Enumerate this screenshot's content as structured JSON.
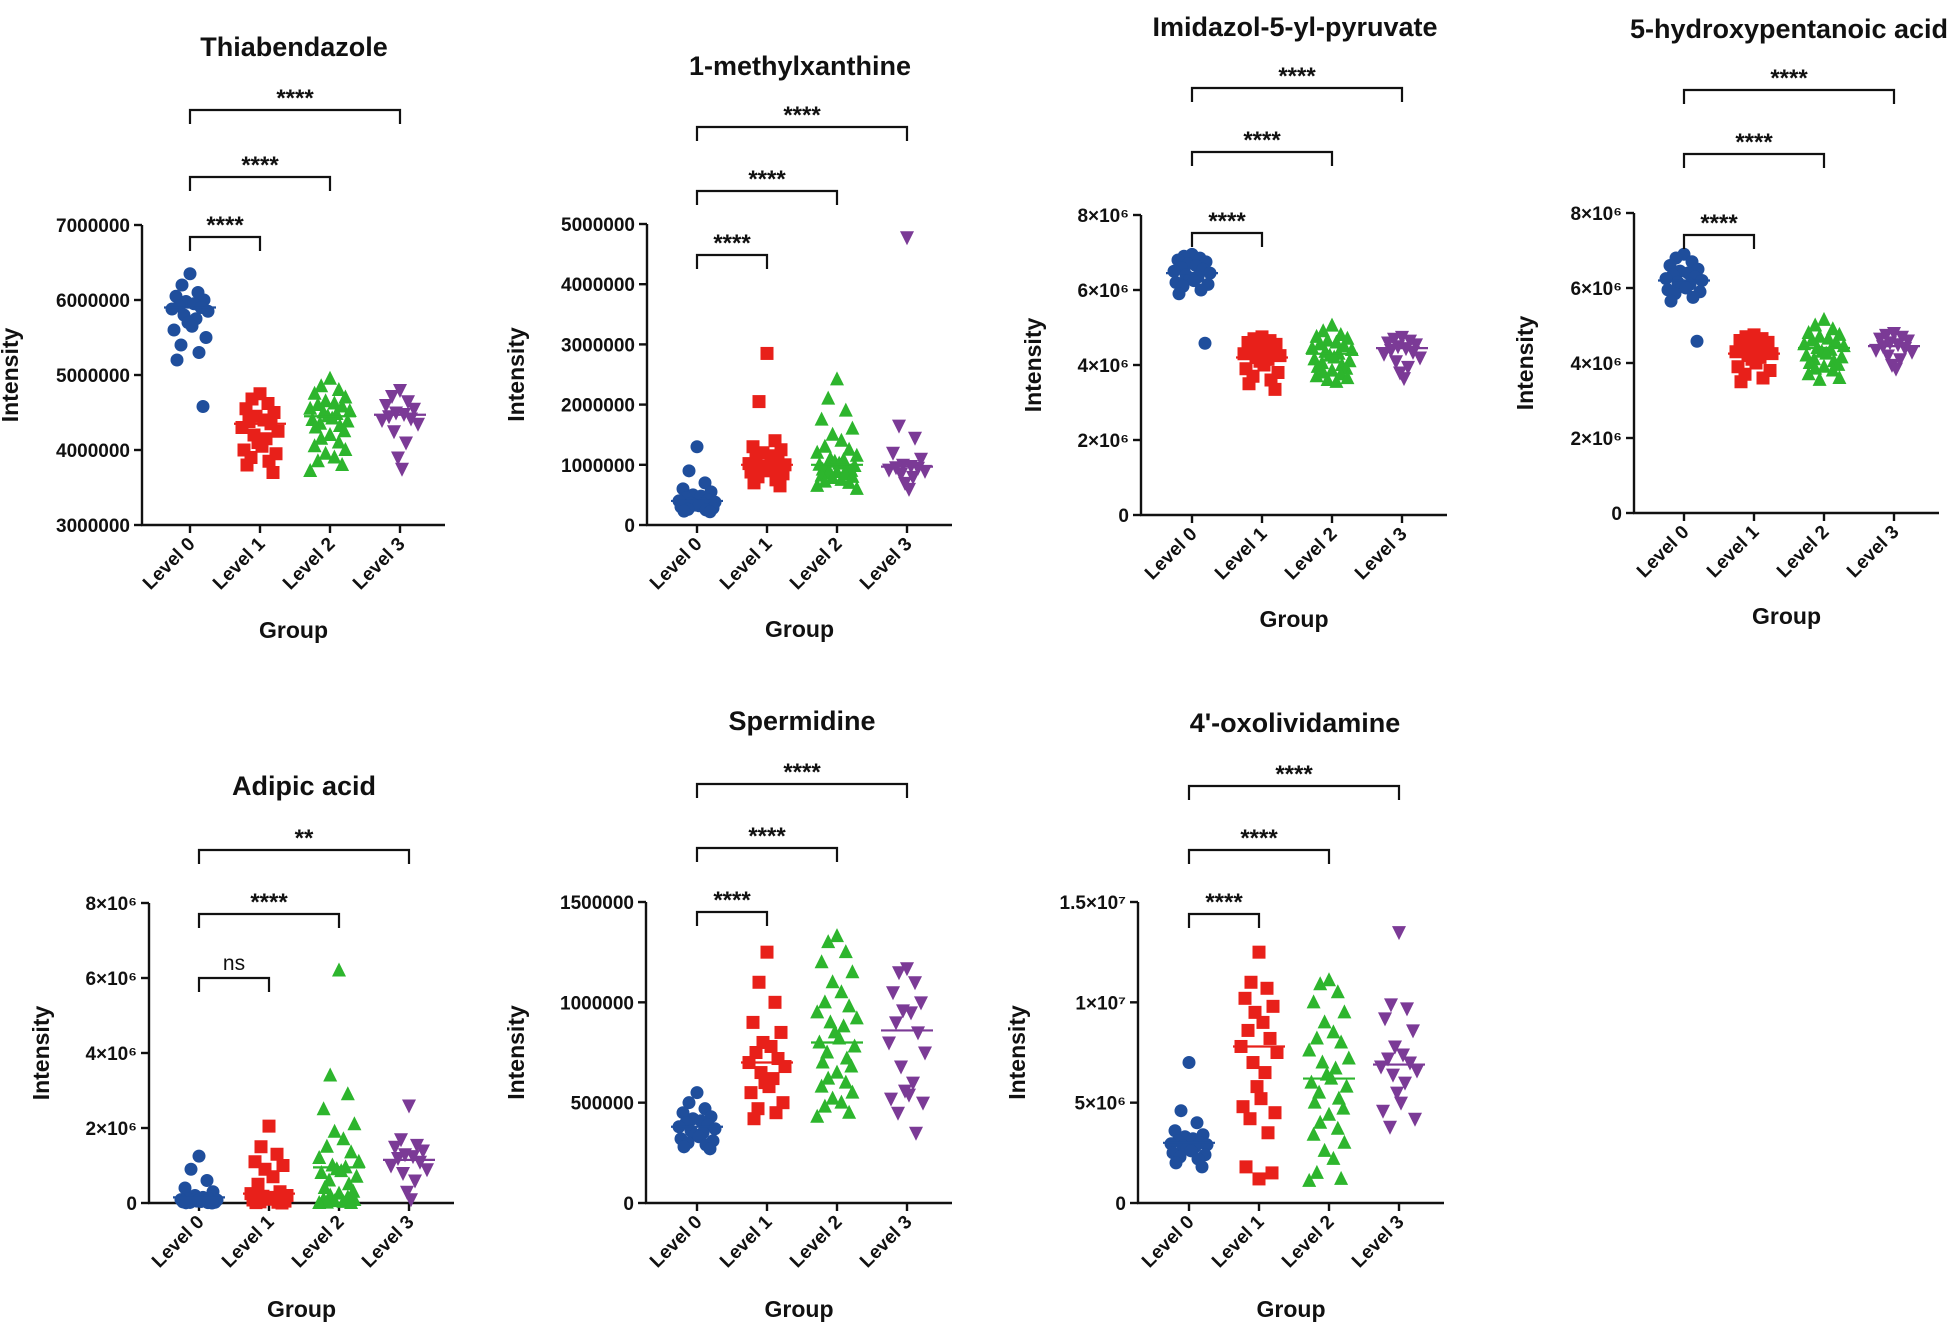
{
  "figure": {
    "x_axis_label": "Group",
    "y_axis_label": "Intensity"
  },
  "group_labels": [
    "Level 0",
    "Level 1",
    "Level 2",
    "Level 3"
  ],
  "colors": {
    "Level 0": "#1f4e9c",
    "Level 1": "#e8201a",
    "Level 2": "#2db52d",
    "Level 3": "#7b3a96"
  },
  "markers": {
    "Level 0": "circle",
    "Level 1": "square",
    "Level 2": "triangle-up",
    "Level 3": "triangle-down"
  },
  "chart_data": [
    {
      "type": "scatter",
      "title": "Thiabendazole",
      "xlabel": "Group",
      "ylabel": "Intensity",
      "categories": [
        "Level 0",
        "Level 1",
        "Level 2",
        "Level 3"
      ],
      "ylim": [
        3000000,
        7000000
      ],
      "yticks": [
        3000000,
        4000000,
        5000000,
        6000000,
        7000000
      ],
      "ytick_labels": [
        "3000000",
        "4000000",
        "5000000",
        "6000000",
        "7000000"
      ],
      "means": [
        5900000,
        4350000,
        4450000,
        4470000
      ],
      "points": [
        [
          6350000,
          6200000,
          6100000,
          6050000,
          6000000,
          5980000,
          5950000,
          5920000,
          5900000,
          5880000,
          5850000,
          5800000,
          5750000,
          5700000,
          5650000,
          5600000,
          5500000,
          5400000,
          5300000,
          5200000,
          4580000
        ],
        [
          4750000,
          4680000,
          4620000,
          4550000,
          4500000,
          4450000,
          4400000,
          4380000,
          4350000,
          4300000,
          4250000,
          4200000,
          4150000,
          4100000,
          4050000,
          4000000,
          3950000,
          3900000,
          3850000,
          3800000,
          3700000
        ],
        [
          4950000,
          4850000,
          4800000,
          4750000,
          4700000,
          4650000,
          4620000,
          4600000,
          4580000,
          4550000,
          4520000,
          4500000,
          4480000,
          4450000,
          4420000,
          4400000,
          4380000,
          4350000,
          4320000,
          4300000,
          4250000,
          4200000,
          4150000,
          4100000,
          4050000,
          4000000,
          3950000,
          3900000,
          3850000,
          3800000,
          3720000
        ],
        [
          4800000,
          4720000,
          4650000,
          4600000,
          4550000,
          4500000,
          4480000,
          4450000,
          4420000,
          4400000,
          4350000,
          4250000,
          4100000,
          3900000,
          3750000
        ]
      ],
      "comparisons": [
        {
          "from": "Level 0",
          "to": "Level 1",
          "label": "****"
        },
        {
          "from": "Level 0",
          "to": "Level 2",
          "label": "****"
        },
        {
          "from": "Level 0",
          "to": "Level 3",
          "label": "****"
        }
      ]
    },
    {
      "type": "scatter",
      "title": "1-methylxanthine",
      "xlabel": "Group",
      "ylabel": "Intensity",
      "categories": [
        "Level 0",
        "Level 1",
        "Level 2",
        "Level 3"
      ],
      "ylim": [
        0,
        5000000
      ],
      "yticks": [
        0,
        1000000,
        2000000,
        3000000,
        4000000,
        5000000
      ],
      "ytick_labels": [
        "0",
        "1000000",
        "2000000",
        "3000000",
        "4000000",
        "5000000"
      ],
      "means": [
        400000,
        1000000,
        1000000,
        970000
      ],
      "points": [
        [
          1300000,
          900000,
          700000,
          600000,
          550000,
          500000,
          480000,
          450000,
          420000,
          400000,
          380000,
          360000,
          350000,
          330000,
          320000,
          300000,
          280000,
          260000,
          250000,
          230000,
          220000
        ],
        [
          2850000,
          2050000,
          1400000,
          1300000,
          1250000,
          1200000,
          1150000,
          1100000,
          1050000,
          1020000,
          1000000,
          980000,
          950000,
          920000,
          900000,
          880000,
          850000,
          800000,
          750000,
          700000,
          650000
        ],
        [
          2420000,
          2100000,
          1900000,
          1750000,
          1600000,
          1500000,
          1400000,
          1300000,
          1250000,
          1200000,
          1150000,
          1100000,
          1080000,
          1050000,
          1020000,
          1000000,
          980000,
          960000,
          940000,
          920000,
          900000,
          880000,
          860000,
          840000,
          820000,
          800000,
          780000,
          750000,
          720000,
          700000,
          650000,
          600000
        ],
        [
          4780000,
          1650000,
          1450000,
          1200000,
          1100000,
          1000000,
          980000,
          960000,
          950000,
          920000,
          900000,
          850000,
          800000,
          700000,
          600000
        ]
      ],
      "comparisons": [
        {
          "from": "Level 0",
          "to": "Level 1",
          "label": "****"
        },
        {
          "from": "Level 0",
          "to": "Level 2",
          "label": "****"
        },
        {
          "from": "Level 0",
          "to": "Level 3",
          "label": "****"
        }
      ]
    },
    {
      "type": "scatter",
      "title": "Imidazol-5-yl-pyruvate",
      "xlabel": "Group",
      "ylabel": "Intensity",
      "categories": [
        "Level 0",
        "Level 1",
        "Level 2",
        "Level 3"
      ],
      "ylim": [
        0,
        8000000
      ],
      "yticks": [
        0,
        2000000,
        4000000,
        6000000,
        8000000
      ],
      "ytick_labels": [
        "0",
        "2×10⁶",
        "4×10⁶",
        "6×10⁶",
        "8×10⁶"
      ],
      "means": [
        6450000,
        4200000,
        4300000,
        4450000
      ],
      "points": [
        [
          6950000,
          6900000,
          6850000,
          6800000,
          6750000,
          6700000,
          6650000,
          6600000,
          6550000,
          6500000,
          6450000,
          6400000,
          6350000,
          6300000,
          6250000,
          6200000,
          6150000,
          6100000,
          6000000,
          5900000,
          4580000
        ],
        [
          4750000,
          4700000,
          4650000,
          4600000,
          4550000,
          4500000,
          4450000,
          4400000,
          4350000,
          4300000,
          4250000,
          4200000,
          4150000,
          4100000,
          4000000,
          3900000,
          3800000,
          3700000,
          3600000,
          3500000,
          3350000
        ],
        [
          5050000,
          4900000,
          4800000,
          4750000,
          4700000,
          4650000,
          4600000,
          4550000,
          4500000,
          4450000,
          4400000,
          4350000,
          4300000,
          4250000,
          4200000,
          4150000,
          4100000,
          4050000,
          4000000,
          3950000,
          3900000,
          3850000,
          3800000,
          3750000,
          3700000,
          3650000,
          3600000,
          3550000
        ],
        [
          4750000,
          4700000,
          4650000,
          4600000,
          4550000,
          4500000,
          4450000,
          4400000,
          4350000,
          4300000,
          4200000,
          4100000,
          3950000,
          3800000,
          3650000
        ]
      ],
      "comparisons": [
        {
          "from": "Level 0",
          "to": "Level 1",
          "label": "****"
        },
        {
          "from": "Level 0",
          "to": "Level 2",
          "label": "****"
        },
        {
          "from": "Level 0",
          "to": "Level 3",
          "label": "****"
        }
      ]
    },
    {
      "type": "scatter",
      "title": "5-hydroxypentanoic acid",
      "xlabel": "Group",
      "ylabel": "Intensity",
      "categories": [
        "Level 0",
        "Level 1",
        "Level 2",
        "Level 3"
      ],
      "ylim": [
        0,
        8000000
      ],
      "yticks": [
        0,
        2000000,
        4000000,
        6000000,
        8000000
      ],
      "ytick_labels": [
        "0",
        "2×10⁶",
        "4×10⁶",
        "6×10⁶",
        "8×10⁶"
      ],
      "means": [
        6200000,
        4250000,
        4400000,
        4450000
      ],
      "points": [
        [
          6900000,
          6800000,
          6700000,
          6600000,
          6500000,
          6450000,
          6400000,
          6350000,
          6300000,
          6250000,
          6200000,
          6150000,
          6100000,
          6050000,
          6000000,
          5950000,
          5900000,
          5850000,
          5750000,
          5650000,
          4580000
        ],
        [
          4750000,
          4700000,
          4650000,
          4600000,
          4550000,
          4500000,
          4450000,
          4400000,
          4350000,
          4300000,
          4250000,
          4200000,
          4150000,
          4100000,
          4000000,
          3900000,
          3800000,
          3700000,
          3600000,
          3500000
        ],
        [
          5150000,
          5000000,
          4900000,
          4800000,
          4750000,
          4700000,
          4650000,
          4600000,
          4550000,
          4500000,
          4450000,
          4400000,
          4350000,
          4300000,
          4250000,
          4200000,
          4150000,
          4100000,
          4050000,
          4000000,
          3950000,
          3900000,
          3850000,
          3800000,
          3700000,
          3600000,
          3550000
        ],
        [
          4800000,
          4750000,
          4700000,
          4650000,
          4600000,
          4550000,
          4500000,
          4450000,
          4400000,
          4350000,
          4300000,
          4200000,
          4100000,
          3950000,
          3850000
        ]
      ],
      "comparisons": [
        {
          "from": "Level 0",
          "to": "Level 1",
          "label": "****"
        },
        {
          "from": "Level 0",
          "to": "Level 2",
          "label": "****"
        },
        {
          "from": "Level 0",
          "to": "Level 3",
          "label": "****"
        }
      ]
    },
    {
      "type": "scatter",
      "title": "Adipic acid",
      "xlabel": "Group",
      "ylabel": "Intensity",
      "categories": [
        "Level 0",
        "Level 1",
        "Level 2",
        "Level 3"
      ],
      "ylim": [
        0,
        8000000
      ],
      "yticks": [
        0,
        2000000,
        4000000,
        6000000,
        8000000
      ],
      "ytick_labels": [
        "0",
        "2×10⁶",
        "4×10⁶",
        "6×10⁶",
        "8×10⁶"
      ],
      "means": [
        150000,
        250000,
        950000,
        1150000
      ],
      "points": [
        [
          1250000,
          900000,
          600000,
          400000,
          300000,
          200000,
          150000,
          120000,
          100000,
          90000,
          80000,
          70000,
          60000,
          50000,
          40000,
          30000,
          20000,
          15000,
          10000,
          5000,
          0
        ],
        [
          2050000,
          1500000,
          1300000,
          1100000,
          1000000,
          900000,
          700000,
          500000,
          300000,
          250000,
          200000,
          180000,
          150000,
          120000,
          100000,
          80000,
          50000,
          30000,
          20000,
          10000,
          0
        ],
        [
          6200000,
          3400000,
          2900000,
          2500000,
          2100000,
          1900000,
          1700000,
          1500000,
          1350000,
          1200000,
          1100000,
          1000000,
          950000,
          900000,
          850000,
          800000,
          700000,
          600000,
          500000,
          400000,
          300000,
          250000,
          200000,
          150000,
          100000,
          80000,
          50000,
          30000,
          10000,
          0,
          0
        ],
        [
          2600000,
          1700000,
          1550000,
          1500000,
          1400000,
          1300000,
          1250000,
          1200000,
          1100000,
          1000000,
          900000,
          800000,
          600000,
          300000,
          100000
        ]
      ],
      "comparisons": [
        {
          "from": "Level 0",
          "to": "Level 1",
          "label": "ns"
        },
        {
          "from": "Level 0",
          "to": "Level 2",
          "label": "****"
        },
        {
          "from": "Level 0",
          "to": "Level 3",
          "label": "**"
        }
      ]
    },
    {
      "type": "scatter",
      "title": "Spermidine",
      "xlabel": "Group",
      "ylabel": "Intensity",
      "categories": [
        "Level 0",
        "Level 1",
        "Level 2",
        "Level 3"
      ],
      "ylim": [
        0,
        1500000
      ],
      "yticks": [
        0,
        500000,
        1000000,
        1500000
      ],
      "ytick_labels": [
        "0",
        "500000",
        "1000000",
        "1500000"
      ],
      "means": [
        380000,
        700000,
        800000,
        860000
      ],
      "points": [
        [
          550000,
          500000,
          470000,
          450000,
          430000,
          420000,
          410000,
          400000,
          390000,
          380000,
          370000,
          360000,
          350000,
          340000,
          330000,
          320000,
          310000,
          300000,
          290000,
          280000,
          270000
        ],
        [
          1250000,
          1100000,
          1000000,
          900000,
          850000,
          800000,
          780000,
          750000,
          720000,
          700000,
          680000,
          650000,
          620000,
          600000,
          580000,
          550000,
          500000,
          470000,
          450000,
          420000
        ],
        [
          1330000,
          1300000,
          1250000,
          1200000,
          1150000,
          1100000,
          1050000,
          1000000,
          980000,
          950000,
          920000,
          900000,
          880000,
          850000,
          820000,
          800000,
          780000,
          750000,
          720000,
          700000,
          680000,
          650000,
          620000,
          600000,
          580000,
          550000,
          520000,
          500000,
          480000,
          450000,
          430000
        ],
        [
          1170000,
          1150000,
          1100000,
          1050000,
          1000000,
          960000,
          950000,
          900000,
          850000,
          800000,
          750000,
          680000,
          600000,
          560000,
          540000,
          520000,
          500000,
          450000,
          350000
        ]
      ],
      "comparisons": [
        {
          "from": "Level 0",
          "to": "Level 1",
          "label": "****"
        },
        {
          "from": "Level 0",
          "to": "Level 2",
          "label": "****"
        },
        {
          "from": "Level 0",
          "to": "Level 3",
          "label": "****"
        }
      ]
    },
    {
      "type": "scatter",
      "title": "4'-oxolividamine",
      "xlabel": "Group",
      "ylabel": "Intensity",
      "categories": [
        "Level 0",
        "Level 1",
        "Level 2",
        "Level 3"
      ],
      "ylim": [
        0,
        15000000
      ],
      "yticks": [
        0,
        5000000,
        10000000,
        15000000
      ],
      "ytick_labels": [
        "0",
        "5×10⁶",
        "1×10⁷",
        "1.5×10⁷"
      ],
      "means": [
        3000000,
        7800000,
        6200000,
        6900000
      ],
      "points": [
        [
          7000000,
          4600000,
          4000000,
          3600000,
          3400000,
          3300000,
          3200000,
          3100000,
          3000000,
          2950000,
          2900000,
          2850000,
          2800000,
          2700000,
          2600000,
          2500000,
          2400000,
          2300000,
          2200000,
          2000000,
          1800000
        ],
        [
          12500000,
          11000000,
          10700000,
          10200000,
          9800000,
          9500000,
          9000000,
          8600000,
          8200000,
          7800000,
          7500000,
          7000000,
          6500000,
          5800000,
          5200000,
          4800000,
          4500000,
          4200000,
          3500000,
          1800000,
          1500000,
          1200000
        ],
        [
          11100000,
          10900000,
          10500000,
          10000000,
          9500000,
          9000000,
          8500000,
          8200000,
          8000000,
          7600000,
          7200000,
          7000000,
          6700000,
          6400000,
          6200000,
          6000000,
          5800000,
          5500000,
          5200000,
          5000000,
          4700000,
          4400000,
          4000000,
          3700000,
          3400000,
          3000000,
          2600000,
          2200000,
          1500000,
          1200000,
          1100000
        ],
        [
          13500000,
          9900000,
          9700000,
          9200000,
          8600000,
          7800000,
          7400000,
          7200000,
          7000000,
          6800000,
          6600000,
          6400000,
          6000000,
          5500000,
          5000000,
          4600000,
          4200000,
          3800000
        ]
      ],
      "comparisons": [
        {
          "from": "Level 0",
          "to": "Level 1",
          "label": "****"
        },
        {
          "from": "Level 0",
          "to": "Level 2",
          "label": "****"
        },
        {
          "from": "Level 0",
          "to": "Level 3",
          "label": "****"
        }
      ]
    }
  ]
}
